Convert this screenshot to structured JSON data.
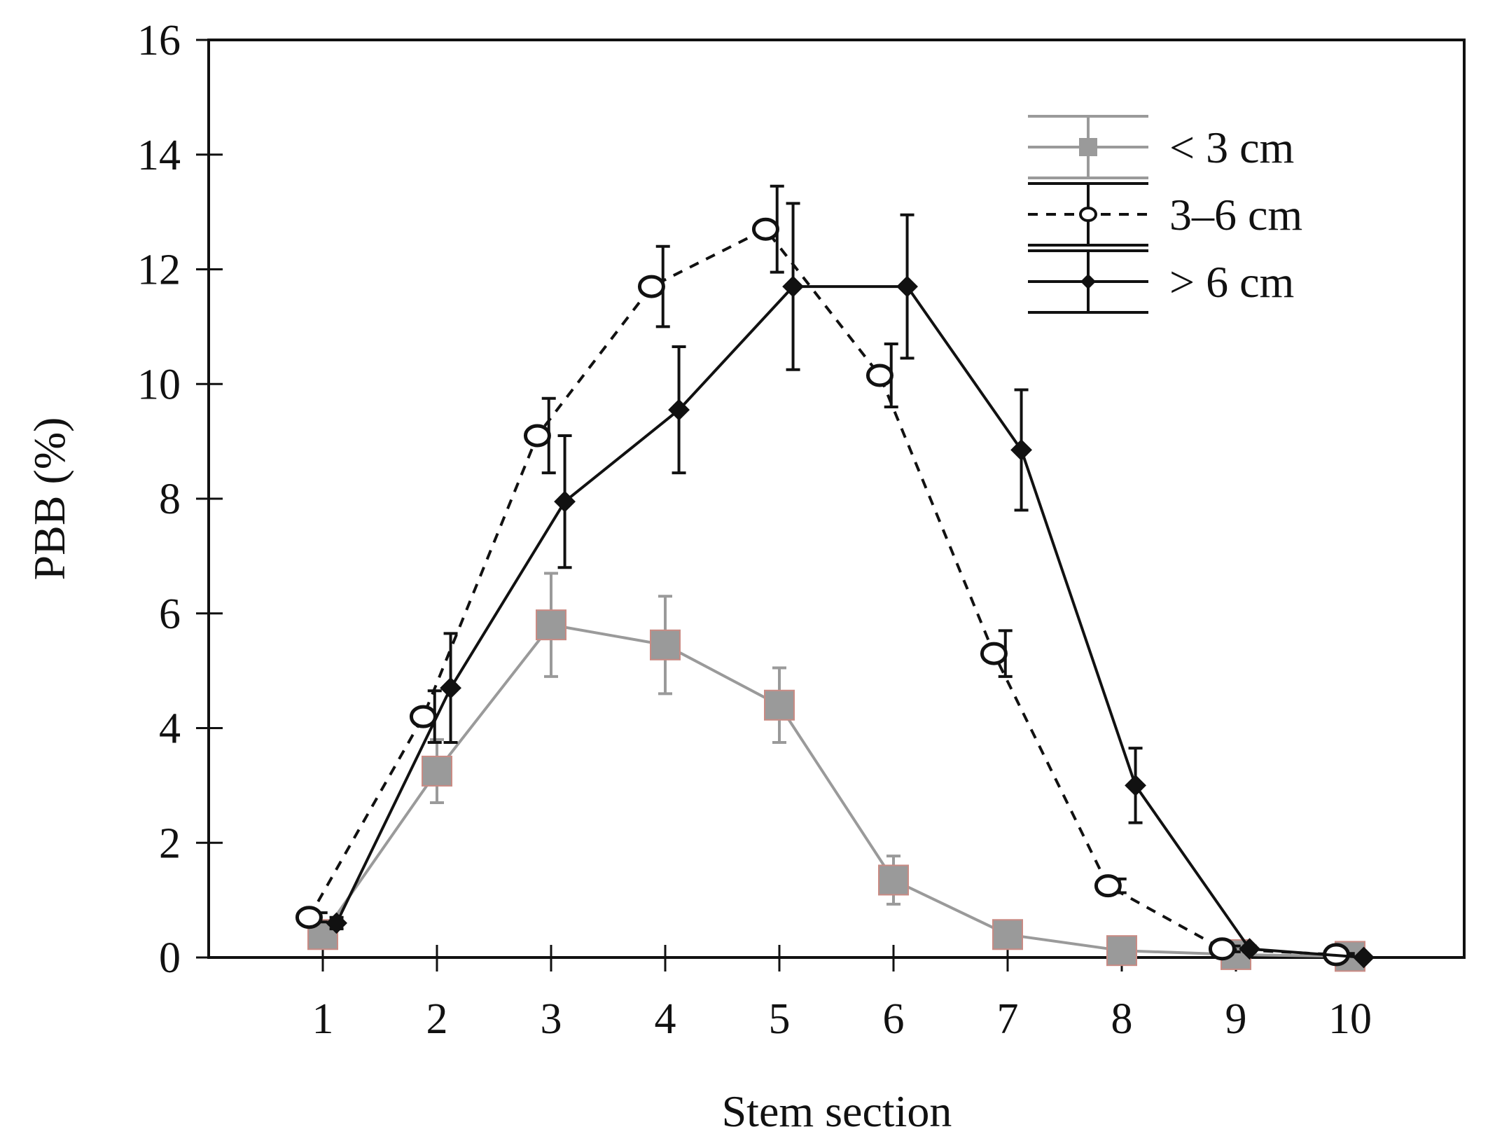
{
  "chart_data": {
    "type": "line",
    "title": "",
    "xlabel": "Stem section",
    "ylabel": "PBB (%)",
    "x": [
      1,
      2,
      3,
      4,
      5,
      6,
      7,
      8,
      9,
      10
    ],
    "x_tick_labels": [
      "1",
      "2",
      "3",
      "4",
      "5",
      "6",
      "7",
      "8",
      "9",
      "10"
    ],
    "xlim": [
      0,
      11
    ],
    "ylim": [
      0,
      16
    ],
    "y_ticks": [
      0,
      2,
      4,
      6,
      8,
      10,
      12,
      14,
      16
    ],
    "y_tick_labels": [
      "0",
      "2",
      "4",
      "6",
      "8",
      "10",
      "12",
      "14",
      "16"
    ],
    "grid": false,
    "legend_position": "top-right",
    "series": [
      {
        "name": "< 3 cm",
        "color": "#9a9a9a",
        "marker": "square",
        "line_style": "solid",
        "x_offset": 0,
        "values": [
          0.4,
          3.25,
          5.8,
          5.45,
          4.4,
          1.35,
          0.4,
          0.12,
          0.05,
          0.02
        ],
        "errors": [
          0.1,
          0.55,
          0.9,
          0.85,
          0.65,
          0.42,
          0.1,
          0.05,
          0.02,
          0.01
        ]
      },
      {
        "name": "3–6 cm",
        "color": "#111111",
        "marker": "open-circle",
        "line_style": "dashed",
        "x_offset": -0.12,
        "values": [
          0.7,
          4.2,
          9.1,
          11.7,
          12.7,
          10.15,
          5.3,
          1.25,
          0.15,
          0.05
        ],
        "errors": [
          0.08,
          0.45,
          0.65,
          0.7,
          0.75,
          0.55,
          0.4,
          0.12,
          0.05,
          0.02
        ],
        "error_bar_offset": 0.1
      },
      {
        "name": "> 6 cm",
        "color": "#111111",
        "marker": "diamond",
        "line_style": "solid",
        "x_offset": 0.12,
        "values": [
          0.6,
          4.7,
          7.95,
          9.55,
          11.7,
          11.7,
          8.85,
          3.0,
          0.15,
          0.0
        ],
        "errors": [
          0.1,
          0.95,
          1.15,
          1.1,
          1.45,
          1.25,
          1.05,
          0.65,
          0.05,
          0.0
        ]
      }
    ]
  }
}
